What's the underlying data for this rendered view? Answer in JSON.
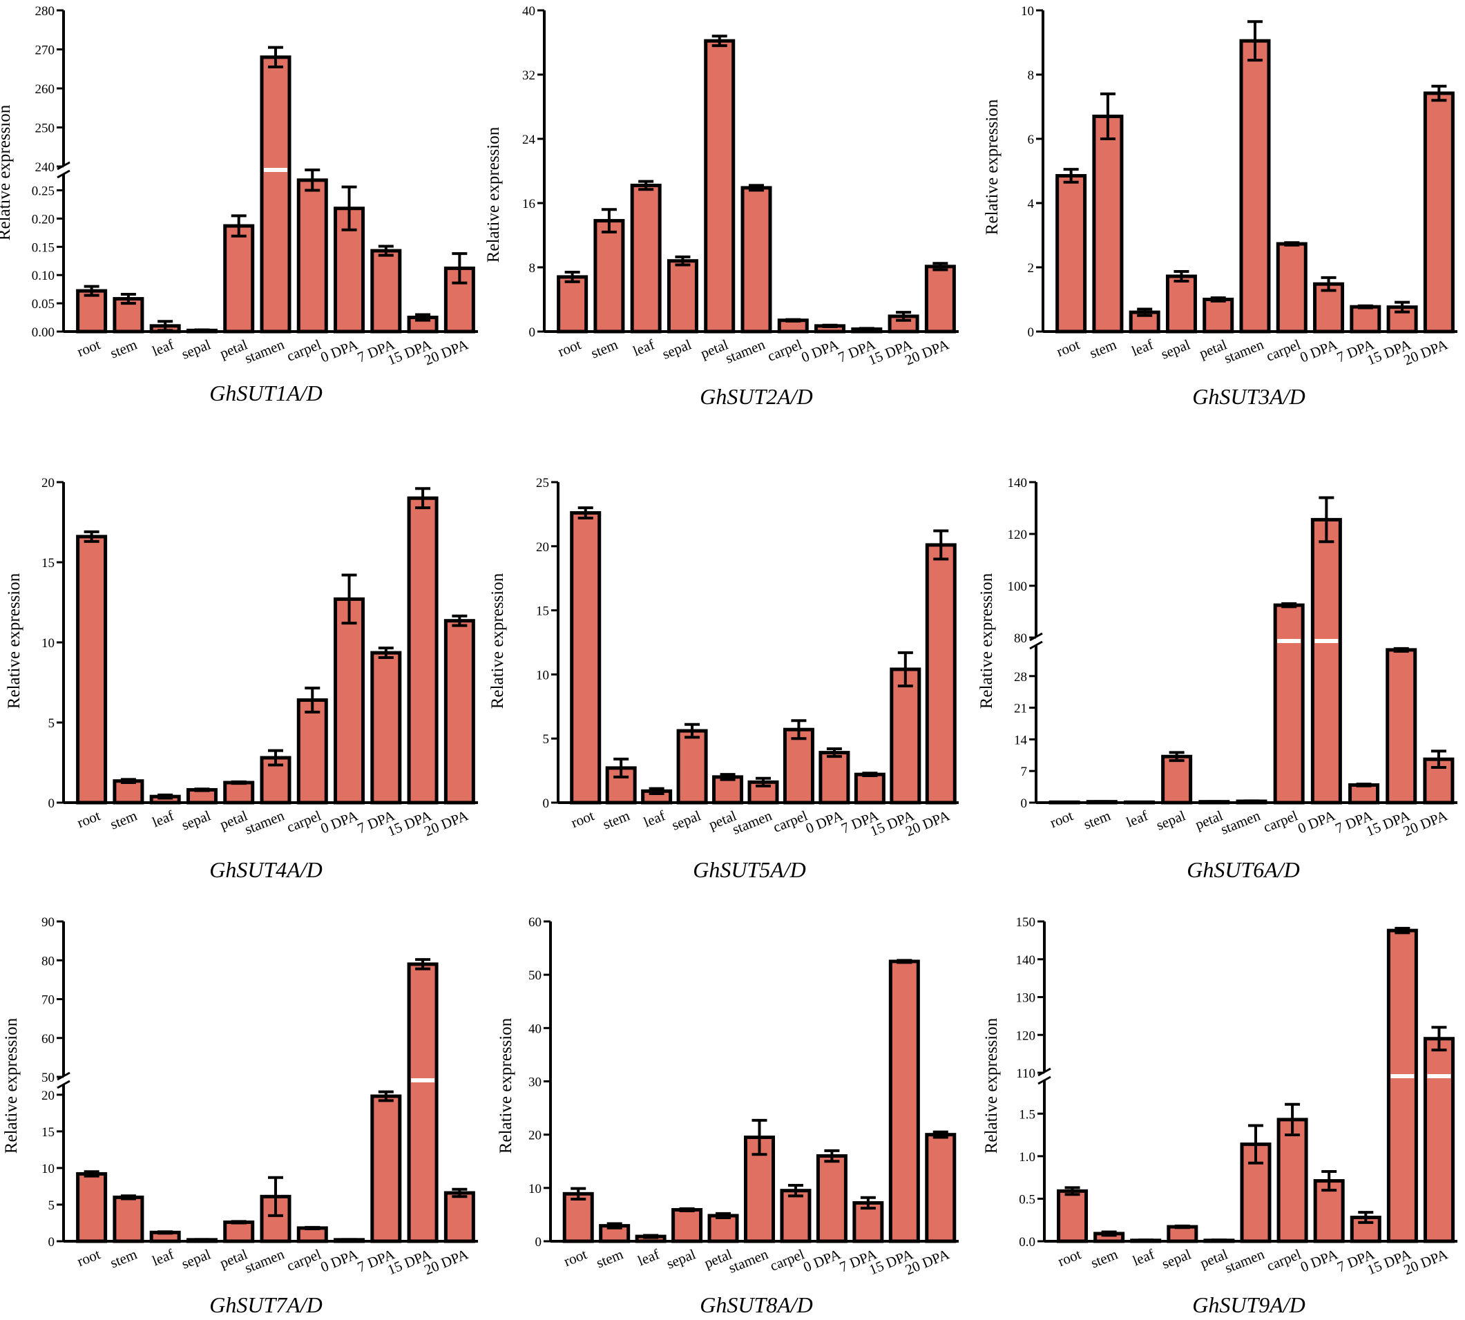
{
  "figure": {
    "bar_color": "#E07062",
    "edge_color": "#000000",
    "categories": [
      "root",
      "stem",
      "leaf",
      "sepal",
      "petal",
      "stamen",
      "carpel",
      "0 DPA",
      "7 DPA",
      "15 DPA",
      "20 DPA"
    ]
  },
  "chart_data": [
    {
      "type": "bar",
      "title": "GhSUT1A/D",
      "ylabel": "Relative expression",
      "categories": [
        "root",
        "stem",
        "leaf",
        "sepal",
        "petal",
        "stamen",
        "carpel",
        "0 DPA",
        "7 DPA",
        "15 DPA",
        "20 DPA"
      ],
      "values": [
        0.072,
        0.058,
        0.01,
        0.002,
        0.187,
        268,
        0.268,
        0.218,
        0.143,
        0.025,
        0.112
      ],
      "errors": [
        0.008,
        0.008,
        0.008,
        0.001,
        0.018,
        2.5,
        0.018,
        0.038,
        0.008,
        0.005,
        0.026
      ],
      "axis_break": {
        "lower": [
          0,
          0.28
        ],
        "upper": [
          240,
          280
        ],
        "lower_ticks": [
          0,
          0.05,
          0.1,
          0.15,
          0.2,
          0.25
        ],
        "lower_tick_labels": [
          "0.00",
          "0.05",
          "0.10",
          "0.15",
          "0.20",
          "0.25"
        ],
        "upper_ticks": [
          240,
          250,
          260,
          270,
          280
        ],
        "upper_tick_labels": [
          "240",
          "250",
          "260",
          "270",
          "280"
        ]
      }
    },
    {
      "type": "bar",
      "title": "GhSUT2A/D",
      "ylabel": "Relative expression",
      "categories": [
        "root",
        "stem",
        "leaf",
        "sepal",
        "petal",
        "stamen",
        "carpel",
        "0 DPA",
        "7 DPA",
        "15 DPA",
        "20 DPA"
      ],
      "values": [
        6.8,
        13.8,
        18.2,
        8.8,
        36.2,
        17.9,
        1.4,
        0.7,
        0.3,
        1.9,
        8.1
      ],
      "errors": [
        0.6,
        1.4,
        0.5,
        0.5,
        0.6,
        0.3,
        0.1,
        0.1,
        0.1,
        0.5,
        0.4
      ],
      "ylim": [
        0,
        40
      ],
      "ticks": [
        0,
        8,
        16,
        24,
        32,
        40
      ],
      "tick_labels": [
        "0",
        "8",
        "16",
        "24",
        "32",
        "40"
      ]
    },
    {
      "type": "bar",
      "title": "GhSUT3A/D",
      "ylabel": "Relative expression",
      "categories": [
        "root",
        "stem",
        "leaf",
        "sepal",
        "petal",
        "stamen",
        "carpel",
        "0 DPA",
        "7 DPA",
        "15 DPA",
        "20 DPA"
      ],
      "values": [
        4.85,
        6.7,
        0.6,
        1.72,
        1.0,
        9.05,
        2.73,
        1.48,
        0.77,
        0.76,
        7.42
      ],
      "errors": [
        0.2,
        0.7,
        0.1,
        0.15,
        0.05,
        0.6,
        0.04,
        0.2,
        0.03,
        0.15,
        0.22
      ],
      "ylim": [
        0,
        10
      ],
      "ticks": [
        0,
        2,
        4,
        6,
        8,
        10
      ],
      "tick_labels": [
        "0",
        "2",
        "4",
        "6",
        "8",
        "10"
      ]
    },
    {
      "type": "bar",
      "title": "GhSUT4A/D",
      "ylabel": "Relative expression",
      "categories": [
        "root",
        "stem",
        "leaf",
        "sepal",
        "petal",
        "stamen",
        "carpel",
        "0 DPA",
        "7 DPA",
        "15 DPA",
        "20 DPA"
      ],
      "values": [
        16.6,
        1.35,
        0.38,
        0.8,
        1.25,
        2.8,
        6.4,
        12.7,
        9.35,
        19.0,
        11.35
      ],
      "errors": [
        0.3,
        0.1,
        0.1,
        0.05,
        0.05,
        0.45,
        0.75,
        1.5,
        0.3,
        0.6,
        0.3
      ],
      "ylim": [
        0,
        20
      ],
      "ticks": [
        0,
        5,
        10,
        15,
        20
      ],
      "tick_labels": [
        "0",
        "5",
        "10",
        "15",
        "20"
      ]
    },
    {
      "type": "bar",
      "title": "GhSUT5A/D",
      "ylabel": "Relative expression",
      "categories": [
        "root",
        "stem",
        "leaf",
        "sepal",
        "petal",
        "stamen",
        "carpel",
        "0 DPA",
        "7 DPA",
        "15 DPA",
        "20 DPA"
      ],
      "values": [
        22.6,
        2.7,
        0.9,
        5.6,
        2.0,
        1.6,
        5.7,
        3.9,
        2.2,
        10.4,
        20.1
      ],
      "errors": [
        0.4,
        0.7,
        0.2,
        0.5,
        0.2,
        0.3,
        0.7,
        0.3,
        0.1,
        1.3,
        1.1
      ],
      "ylim": [
        0,
        25
      ],
      "ticks": [
        0,
        5,
        10,
        15,
        20,
        25
      ],
      "tick_labels": [
        "0",
        "5",
        "10",
        "15",
        "20",
        "25"
      ]
    },
    {
      "type": "bar",
      "title": "GhSUT6A/D",
      "ylabel": "Relative expression",
      "categories": [
        "root",
        "stem",
        "leaf",
        "sepal",
        "petal",
        "stamen",
        "carpel",
        "0 DPA",
        "7 DPA",
        "15 DPA",
        "20 DPA"
      ],
      "values": [
        0.1,
        0.2,
        0.1,
        10.2,
        0.2,
        0.3,
        92.5,
        125.5,
        3.9,
        33.8,
        9.6
      ],
      "errors": [
        0.05,
        0.05,
        0.05,
        0.9,
        0.05,
        0.1,
        0.6,
        8.5,
        0.2,
        0.3,
        1.8
      ],
      "axis_break": {
        "lower": [
          0,
          35
        ],
        "upper": [
          80,
          140
        ],
        "lower_ticks": [
          0,
          7,
          14,
          21,
          28
        ],
        "lower_tick_labels": [
          "0",
          "7",
          "14",
          "21",
          "28"
        ],
        "upper_ticks": [
          80,
          100,
          120,
          140
        ],
        "upper_tick_labels": [
          "80",
          "100",
          "120",
          "140"
        ]
      }
    },
    {
      "type": "bar",
      "title": "GhSUT7A/D",
      "ylabel": "Relative expression",
      "categories": [
        "root",
        "stem",
        "leaf",
        "sepal",
        "petal",
        "stamen",
        "carpel",
        "0 DPA",
        "7 DPA",
        "15 DPA",
        "20 DPA"
      ],
      "values": [
        9.2,
        6.0,
        1.2,
        0.2,
        2.6,
        6.1,
        1.8,
        0.2,
        19.8,
        79.0,
        6.6
      ],
      "errors": [
        0.3,
        0.2,
        0.1,
        0.05,
        0.1,
        2.6,
        0.1,
        0.05,
        0.6,
        1.2,
        0.5
      ],
      "axis_break": {
        "lower": [
          0,
          21.5
        ],
        "upper": [
          50,
          90
        ],
        "lower_ticks": [
          0,
          5,
          10,
          15,
          20
        ],
        "lower_tick_labels": [
          "0",
          "5",
          "10",
          "15",
          "20"
        ],
        "upper_ticks": [
          50,
          60,
          70,
          80,
          90
        ],
        "upper_tick_labels": [
          "50",
          "60",
          "70",
          "80",
          "90"
        ]
      }
    },
    {
      "type": "bar",
      "title": "GhSUT8A/D",
      "ylabel": "Relative expression",
      "categories": [
        "root",
        "stem",
        "leaf",
        "sepal",
        "petal",
        "stamen",
        "carpel",
        "0 DPA",
        "7 DPA",
        "15 DPA",
        "20 DPA"
      ],
      "values": [
        8.9,
        2.9,
        0.9,
        5.9,
        4.8,
        19.5,
        9.5,
        16.0,
        7.2,
        52.5,
        20.0
      ],
      "errors": [
        1.0,
        0.4,
        0.2,
        0.2,
        0.4,
        3.2,
        1.0,
        1.0,
        1.0,
        0.2,
        0.5
      ],
      "ylim": [
        0,
        60
      ],
      "ticks": [
        0,
        10,
        20,
        30,
        40,
        50,
        60
      ],
      "tick_labels": [
        "0",
        "10",
        "20",
        "30",
        "40",
        "50",
        "60"
      ]
    },
    {
      "type": "bar",
      "title": "GhSUT9A/D",
      "ylabel": "Relative expression",
      "categories": [
        "root",
        "stem",
        "leaf",
        "sepal",
        "petal",
        "stamen",
        "carpel",
        "0 DPA",
        "7 DPA",
        "15 DPA",
        "20 DPA"
      ],
      "values": [
        0.59,
        0.09,
        0.01,
        0.17,
        0.01,
        1.14,
        1.43,
        0.71,
        0.28,
        147.6,
        119.0
      ],
      "errors": [
        0.04,
        0.02,
        0.005,
        0.01,
        0.005,
        0.22,
        0.18,
        0.11,
        0.06,
        0.6,
        3.0
      ],
      "axis_break": {
        "lower": [
          0,
          1.9
        ],
        "upper": [
          110,
          150
        ],
        "lower_ticks": [
          0,
          0.5,
          1.0,
          1.5
        ],
        "lower_tick_labels": [
          "0.0",
          "0.5",
          "1.0",
          "1.5"
        ],
        "upper_ticks": [
          110,
          120,
          130,
          140,
          150
        ],
        "upper_tick_labels": [
          "110",
          "120",
          "130",
          "140",
          "150"
        ]
      }
    }
  ]
}
